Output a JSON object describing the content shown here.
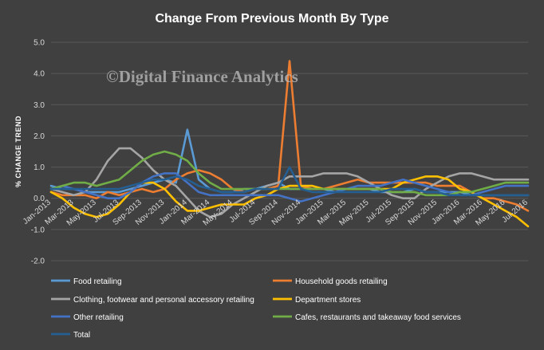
{
  "chart_data": {
    "type": "line",
    "title": "Change From Previous Month By Type",
    "watermark": "©Digital Finance Analytics",
    "ylabel": "% CHANGE TREND",
    "xlabel": "",
    "ylim": [
      -2.0,
      5.0
    ],
    "y_ticks": [
      "5.0",
      "4.0",
      "3.0",
      "2.0",
      "1.0",
      "0.0",
      "-1.0",
      "-2.0"
    ],
    "x_tick_labels": [
      "Jan-2013",
      "Mar-2013",
      "May-2013",
      "Jul-2013",
      "Sep-2013",
      "Nov-2013",
      "Jan-2014",
      "Mar-2014",
      "May-2014",
      "Jul-2014",
      "Sep-2014",
      "Nov-2014",
      "Jan-2015",
      "Mar-2015",
      "May-2015",
      "Jul-2015",
      "Sep-2015",
      "Nov-2015",
      "Jan-2016",
      "Mar-2016",
      "May-2016",
      "Jul-2016"
    ],
    "x": [
      "Jan-2013",
      "Feb-2013",
      "Mar-2013",
      "Apr-2013",
      "May-2013",
      "Jun-2013",
      "Jul-2013",
      "Aug-2013",
      "Sep-2013",
      "Oct-2013",
      "Nov-2013",
      "Dec-2013",
      "Jan-2014",
      "Feb-2014",
      "Mar-2014",
      "Apr-2014",
      "May-2014",
      "Jun-2014",
      "Jul-2014",
      "Aug-2014",
      "Sep-2014",
      "Oct-2014",
      "Nov-2014",
      "Dec-2014",
      "Jan-2015",
      "Feb-2015",
      "Mar-2015",
      "Apr-2015",
      "May-2015",
      "Jun-2015",
      "Jul-2015",
      "Aug-2015",
      "Sep-2015",
      "Oct-2015",
      "Nov-2015",
      "Dec-2015",
      "Jan-2016",
      "Feb-2016",
      "Mar-2016",
      "Apr-2016",
      "May-2016",
      "Jun-2016",
      "Jul-2016"
    ],
    "grid": "horizontal",
    "legend_position": "bottom",
    "series": [
      {
        "name": "Food retailing",
        "color": "#5b9bd5",
        "values": [
          0.4,
          0.3,
          0.3,
          0.2,
          0.2,
          0.2,
          0.2,
          0.3,
          0.4,
          0.5,
          0.6,
          0.5,
          2.2,
          0.6,
          0.3,
          0.2,
          0.2,
          0.3,
          0.3,
          0.4,
          0.5,
          0.3,
          0.3,
          0.3,
          0.3,
          0.2,
          0.3,
          0.3,
          0.3,
          0.2,
          0.2,
          0.2,
          0.3,
          0.2,
          0.2,
          0.2,
          0.2,
          0.1,
          0.1,
          0.1,
          0.1,
          0.1,
          0.1
        ]
      },
      {
        "name": "Household goods retailing",
        "color": "#ed7d31",
        "values": [
          0.2,
          0.1,
          0.1,
          0.1,
          0.0,
          0.2,
          0.1,
          0.2,
          0.3,
          0.2,
          0.3,
          0.6,
          0.8,
          0.9,
          0.8,
          0.6,
          0.3,
          0.2,
          0.3,
          0.3,
          0.4,
          4.4,
          0.4,
          0.3,
          0.3,
          0.4,
          0.5,
          0.6,
          0.5,
          0.5,
          0.5,
          0.5,
          0.5,
          0.5,
          0.4,
          0.4,
          0.4,
          0.2,
          0.0,
          0.0,
          -0.1,
          -0.2,
          -0.4
        ]
      },
      {
        "name": "Clothing, footwear and personal accessory retailing",
        "color": "#a5a5a5",
        "values": [
          0.3,
          0.2,
          0.1,
          0.2,
          0.6,
          1.2,
          1.6,
          1.6,
          1.3,
          0.9,
          0.6,
          0.4,
          0.0,
          -0.4,
          -0.6,
          -0.5,
          -0.2,
          0.0,
          0.2,
          0.4,
          0.5,
          0.7,
          0.7,
          0.7,
          0.8,
          0.8,
          0.8,
          0.7,
          0.5,
          0.3,
          0.1,
          0.0,
          0.0,
          0.3,
          0.5,
          0.7,
          0.8,
          0.8,
          0.7,
          0.6,
          0.6,
          0.6,
          0.6
        ]
      },
      {
        "name": "Department stores",
        "color": "#ffc000",
        "values": [
          0.2,
          0.0,
          -0.3,
          -0.5,
          -0.6,
          -0.5,
          -0.2,
          0.2,
          0.5,
          0.5,
          0.3,
          -0.1,
          -0.4,
          -0.4,
          -0.3,
          -0.2,
          -0.2,
          -0.2,
          0.0,
          0.1,
          0.3,
          0.4,
          0.4,
          0.4,
          0.3,
          0.3,
          0.3,
          0.3,
          0.3,
          0.3,
          0.3,
          0.5,
          0.6,
          0.7,
          0.7,
          0.6,
          0.3,
          0.2,
          0.0,
          -0.2,
          -0.4,
          -0.6,
          -0.9
        ]
      },
      {
        "name": "Other retailing",
        "color": "#4472c4",
        "values": [
          0.3,
          0.4,
          0.3,
          0.2,
          0.1,
          0.0,
          0.0,
          0.2,
          0.5,
          0.7,
          0.8,
          0.8,
          0.5,
          0.2,
          0.1,
          0.1,
          0.1,
          0.1,
          0.1,
          0.1,
          0.1,
          0.0,
          -0.1,
          0.0,
          0.1,
          0.2,
          0.3,
          0.4,
          0.4,
          0.4,
          0.5,
          0.6,
          0.5,
          0.4,
          0.3,
          0.2,
          0.1,
          0.1,
          0.2,
          0.3,
          0.4,
          0.4,
          0.4
        ]
      },
      {
        "name": "Cafes, restaurants and takeaway food services",
        "color": "#70ad47",
        "values": [
          0.3,
          0.4,
          0.5,
          0.5,
          0.4,
          0.5,
          0.6,
          0.9,
          1.2,
          1.4,
          1.5,
          1.4,
          1.2,
          0.8,
          0.5,
          0.3,
          0.3,
          0.3,
          0.3,
          0.3,
          0.3,
          0.3,
          0.3,
          0.3,
          0.3,
          0.3,
          0.3,
          0.3,
          0.3,
          0.3,
          0.2,
          0.2,
          0.2,
          0.1,
          0.1,
          0.1,
          0.2,
          0.2,
          0.3,
          0.4,
          0.5,
          0.5,
          0.5
        ]
      },
      {
        "name": "Total",
        "color": "#255e91",
        "values": [
          0.3,
          0.3,
          0.3,
          0.3,
          0.3,
          0.3,
          0.3,
          0.4,
          0.5,
          0.6,
          0.6,
          0.7,
          0.6,
          0.4,
          0.3,
          0.2,
          0.2,
          0.2,
          0.3,
          0.3,
          0.3,
          1.0,
          0.3,
          0.2,
          0.2,
          0.2,
          0.2,
          0.2,
          0.2,
          0.2,
          0.3,
          0.3,
          0.3,
          0.2,
          0.2,
          0.1,
          0.1,
          0.1,
          0.1,
          0.1,
          0.1,
          0.1,
          0.1
        ]
      }
    ]
  }
}
